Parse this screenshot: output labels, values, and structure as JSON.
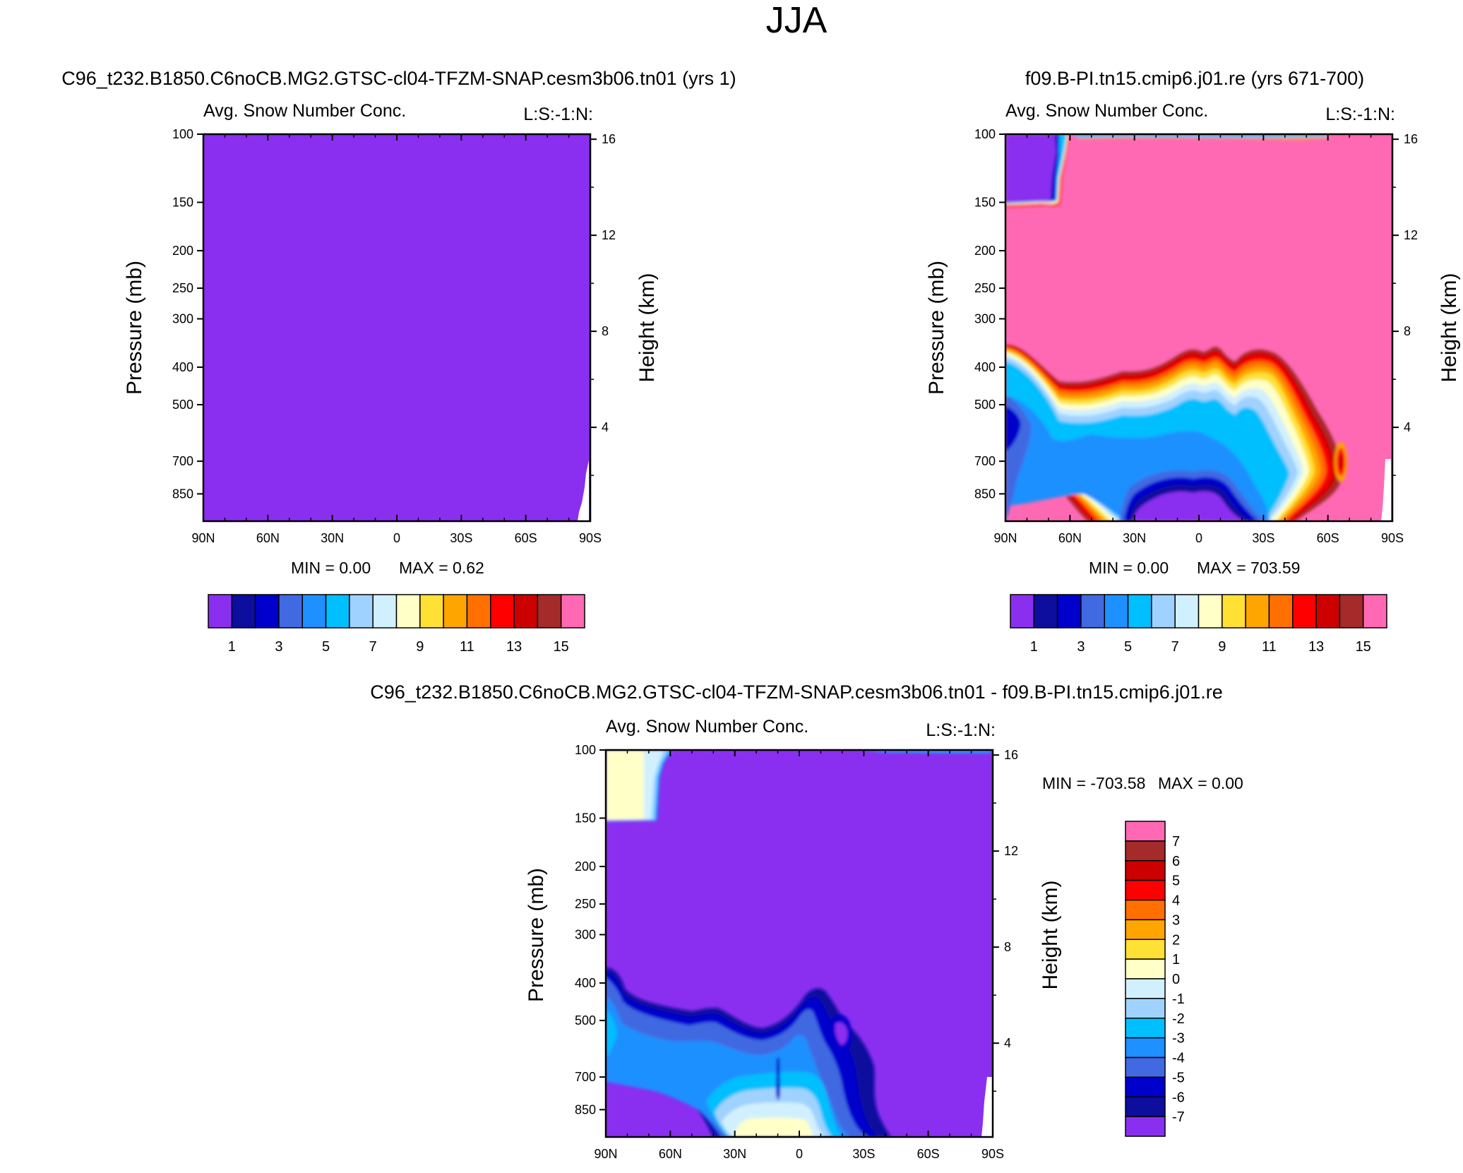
{
  "figure": {
    "season": "JJA",
    "variable": "Avg. Snow Number Conc.",
    "level_tag": "L:S:-1:N:"
  },
  "chart_data": [
    {
      "id": "panel-left",
      "type": "heatmap",
      "run_title": "C96_t232.B1850.C6noCB.MG2.GTSC-cl04-TFZM-SNAP.cesm3b06.tn01 (yrs 1)",
      "plot_title": "Avg. Snow Number Conc.",
      "level_tag": "L:S:-1:N:",
      "ylabel": "Pressure (mb)",
      "y2label": "Height (km)",
      "x_ticks": [
        "90N",
        "60N",
        "30N",
        "0",
        "30S",
        "60S",
        "90S"
      ],
      "p_ticks": [
        100,
        150,
        200,
        250,
        300,
        400,
        500,
        700,
        850
      ],
      "h_ticks": [
        16,
        12,
        8,
        4
      ],
      "min_label": "MIN =   0.00",
      "max_label": "MAX =   0.62",
      "colorbar_orientation": "horizontal",
      "colorbar_labels": [
        "1",
        "3",
        "5",
        "7",
        "9",
        "11",
        "13",
        "15"
      ]
    },
    {
      "id": "panel-right",
      "type": "heatmap",
      "run_title": "f09.B-PI.tn15.cmip6.j01.re (yrs 671-700)",
      "plot_title": "Avg. Snow Number Conc.",
      "level_tag": "L:S:-1:N:",
      "ylabel": "Pressure (mb)",
      "y2label": "Height (km)",
      "x_ticks": [
        "90N",
        "60N",
        "30N",
        "0",
        "30S",
        "60S",
        "90S"
      ],
      "p_ticks": [
        100,
        150,
        200,
        250,
        300,
        400,
        500,
        700,
        850
      ],
      "h_ticks": [
        16,
        12,
        8,
        4
      ],
      "min_label": "MIN =   0.00",
      "max_label": "MAX = 703.59",
      "colorbar_orientation": "horizontal",
      "colorbar_labels": [
        "1",
        "3",
        "5",
        "7",
        "9",
        "11",
        "13",
        "15"
      ]
    },
    {
      "id": "panel-diff",
      "type": "heatmap",
      "run_title": "C96_t232.B1850.C6noCB.MG2.GTSC-cl04-TFZM-SNAP.cesm3b06.tn01 - f09.B-PI.tn15.cmip6.j01.re",
      "plot_title": "Avg. Snow Number Conc.",
      "level_tag": "L:S:-1:N:",
      "ylabel": "Pressure (mb)",
      "y2label": "Height (km)",
      "x_ticks": [
        "90N",
        "60N",
        "30N",
        "0",
        "30S",
        "60S",
        "90S"
      ],
      "p_ticks": [
        100,
        150,
        200,
        250,
        300,
        400,
        500,
        700,
        850
      ],
      "h_ticks": [
        16,
        12,
        8,
        4
      ],
      "min_label": "MIN = -703.58",
      "max_label": "MAX =   0.00",
      "colorbar_orientation": "vertical",
      "colorbar_labels": [
        "7",
        "6",
        "5",
        "4",
        "3",
        "2",
        "1",
        "0",
        "-1",
        "-2",
        "-3",
        "-4",
        "-5",
        "-6",
        "-7"
      ]
    }
  ],
  "palettes": {
    "abs": [
      "#8a2ff0",
      "#0d0d9e",
      "#0000cc",
      "#4169e1",
      "#1e90ff",
      "#00bfff",
      "#a0d2ff",
      "#d1f0ff",
      "#ffffc8",
      "#ffe135",
      "#ffa500",
      "#ff7000",
      "#ff0000",
      "#cd0000",
      "#a52a2a",
      "#ff69b4"
    ],
    "diff": [
      "#ff69b4",
      "#a52a2a",
      "#cd0000",
      "#ff0000",
      "#ff7000",
      "#ffa500",
      "#ffe135",
      "#ffffc8",
      "#d1f0ff",
      "#a0d2ff",
      "#00bfff",
      "#1e90ff",
      "#4169e1",
      "#0000cc",
      "#0d0d9e",
      "#8a2ff0"
    ]
  }
}
